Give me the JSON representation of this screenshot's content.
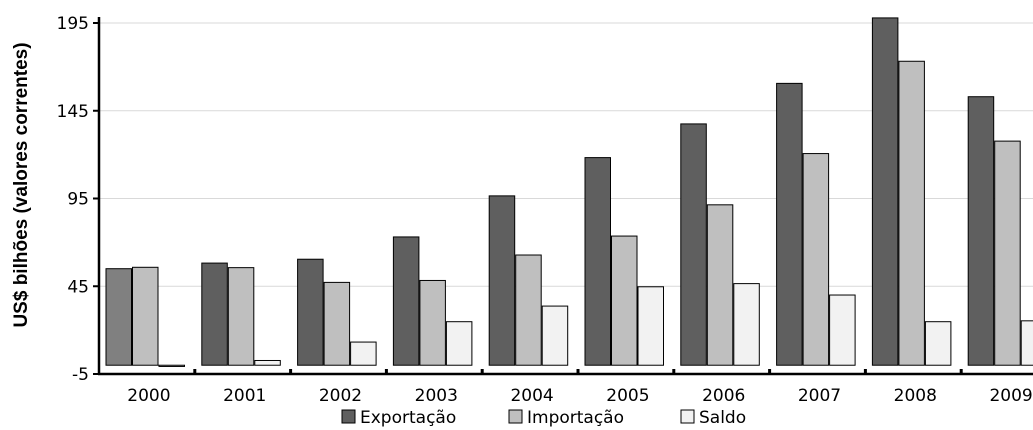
{
  "chart_data": {
    "type": "bar",
    "ylabel": "US$ bilhões (valores correntes)",
    "ylim": [
      -5,
      195
    ],
    "yticks": [
      "195",
      "145",
      "95",
      "45",
      "-5"
    ],
    "ytick_values": [
      195,
      145,
      95,
      45,
      -5
    ],
    "categories": [
      "2000",
      "2001",
      "2002",
      "2003",
      "2004",
      "2005",
      "2006",
      "2007",
      "2008",
      "2009"
    ],
    "grid": true,
    "legend_position": "bottom",
    "series": [
      {
        "name": "Exportação",
        "color": "#5f5f5f",
        "values": [
          55,
          58.2,
          60.4,
          73.1,
          96.5,
          118.3,
          137.5,
          160.6,
          197.9,
          153
        ]
      },
      {
        "name": "Importação",
        "color": "#bfbfbf",
        "values": [
          55.8,
          55.6,
          47.2,
          48.3,
          62.8,
          73.6,
          91.4,
          120.6,
          173.2,
          127.7
        ]
      },
      {
        "name": "Saldo",
        "color": "#f2f2f2",
        "values": [
          -0.7,
          2.7,
          13.2,
          24.8,
          33.7,
          44.7,
          46.5,
          40,
          24.8,
          25.3
        ]
      }
    ],
    "first_bar_color": "#808080"
  }
}
